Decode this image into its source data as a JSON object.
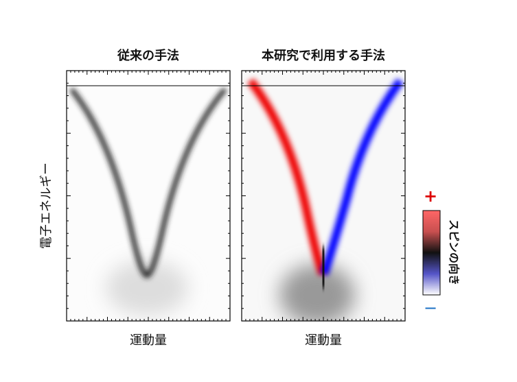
{
  "panels": [
    {
      "title": "従来の手法",
      "x_label": "運動量"
    },
    {
      "title": "本研究で利用する手法",
      "x_label": "運動量"
    }
  ],
  "y_label": "電子エネルギー",
  "colorbar": {
    "label": "スピンの向き",
    "plus": "+",
    "minus": "−"
  }
}
